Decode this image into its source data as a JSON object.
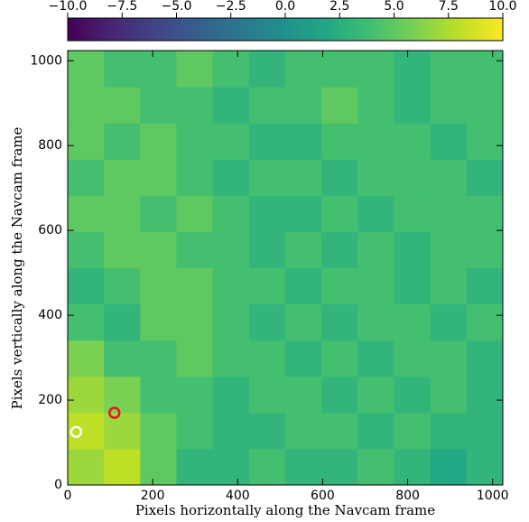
{
  "chart_data": {
    "type": "heatmap",
    "xlabel": "Pixels horizontally along the Navcam frame",
    "ylabel": "Pixels vertically along the Navcam frame",
    "xlim": [
      0,
      1024
    ],
    "ylim": [
      0,
      1024
    ],
    "xticks": [
      0,
      200,
      400,
      600,
      800,
      1000
    ],
    "yticks": [
      0,
      200,
      400,
      600,
      800,
      1000
    ],
    "colormap": "viridis",
    "clim": [
      -10,
      10
    ],
    "colorbar_ticks": [
      {
        "value": -10,
        "label": "−10.0"
      },
      {
        "value": -7.5,
        "label": "−7.5"
      },
      {
        "value": -5,
        "label": "−5.0"
      },
      {
        "value": -2.5,
        "label": "−2.5"
      },
      {
        "value": 0,
        "label": "0.0"
      },
      2.5,
      {
        "value": 5,
        "label": "5.0"
      },
      7.5,
      {
        "value": 10,
        "label": "10.0"
      }
    ],
    "z": [
      [
        7,
        8,
        5,
        3,
        3,
        4,
        3,
        3,
        4,
        3,
        2,
        3
      ],
      [
        8,
        7,
        5,
        4,
        3,
        3,
        4,
        4,
        3,
        4,
        3,
        3
      ],
      [
        7,
        6,
        4,
        4,
        3,
        4,
        4,
        3,
        4,
        3,
        4,
        3
      ],
      [
        6,
        4,
        4,
        5,
        4,
        4,
        3,
        4,
        3,
        4,
        4,
        3
      ],
      [
        4,
        3,
        5,
        5,
        4,
        3,
        4,
        3,
        4,
        4,
        3,
        4
      ],
      [
        3,
        4,
        5,
        5,
        4,
        4,
        3,
        4,
        4,
        3,
        4,
        3
      ],
      [
        4,
        5,
        5,
        4,
        4,
        3,
        4,
        3,
        4,
        3,
        4,
        4
      ],
      [
        5,
        5,
        4,
        5,
        4,
        3,
        3,
        4,
        3,
        4,
        4,
        4
      ],
      [
        4,
        5,
        5,
        4,
        3,
        4,
        4,
        3,
        4,
        4,
        4,
        3
      ],
      [
        5,
        4,
        5,
        4,
        4,
        3,
        3,
        4,
        4,
        4,
        3,
        4
      ],
      [
        5,
        5,
        4,
        4,
        3,
        4,
        4,
        5,
        4,
        3,
        4,
        4
      ],
      [
        5,
        4,
        4,
        5,
        4,
        3,
        4,
        4,
        4,
        3,
        4,
        4
      ]
    ],
    "markers": [
      {
        "x": 20,
        "y": 125,
        "color": "#ffffff"
      },
      {
        "x": 110,
        "y": 170,
        "color": "#e8141c"
      }
    ]
  }
}
